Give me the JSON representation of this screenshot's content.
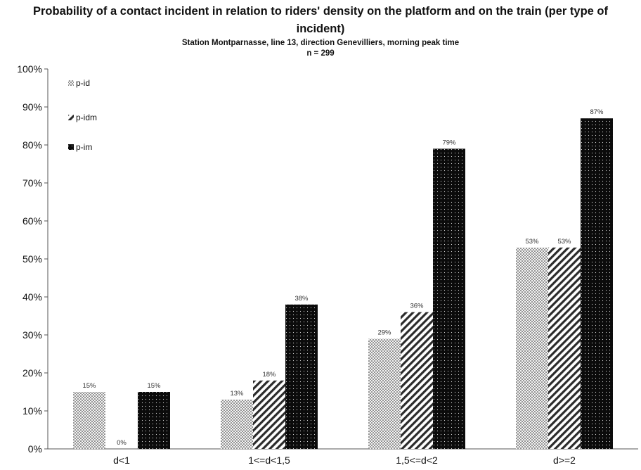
{
  "chart_data": {
    "type": "bar",
    "title": "Probability of a contact incident in relation to riders' density on the platform and on the train (per type of incident)",
    "subtitle_lines": [
      "Station Montparnasse, line 13, direction Genevilliers, morning peak time",
      "n = 299"
    ],
    "categories": [
      "d<1",
      "1<=d<1,5",
      "1,5<=d<2",
      "d>=2"
    ],
    "series": [
      {
        "name": "p-id",
        "values": [
          15,
          13,
          29,
          53
        ],
        "labels": [
          "15%",
          "13%",
          "29%",
          "53%"
        ],
        "pattern": "dense-dots"
      },
      {
        "name": "p-idm",
        "values": [
          0,
          18,
          36,
          53
        ],
        "labels": [
          "0%",
          "18%",
          "36%",
          "53%"
        ],
        "pattern": "diagonal-stripes"
      },
      {
        "name": "p-im",
        "values": [
          15,
          38,
          79,
          87
        ],
        "labels": [
          "15%",
          "38%",
          "79%",
          "87%"
        ],
        "pattern": "black-dotted"
      }
    ],
    "ylim": [
      0,
      100
    ],
    "yticks": [
      "0%",
      "10%",
      "20%",
      "30%",
      "40%",
      "50%",
      "60%",
      "70%",
      "80%",
      "90%",
      "100%"
    ],
    "xlabel": "",
    "ylabel": "",
    "grid": false,
    "legend_position": "top-left"
  }
}
